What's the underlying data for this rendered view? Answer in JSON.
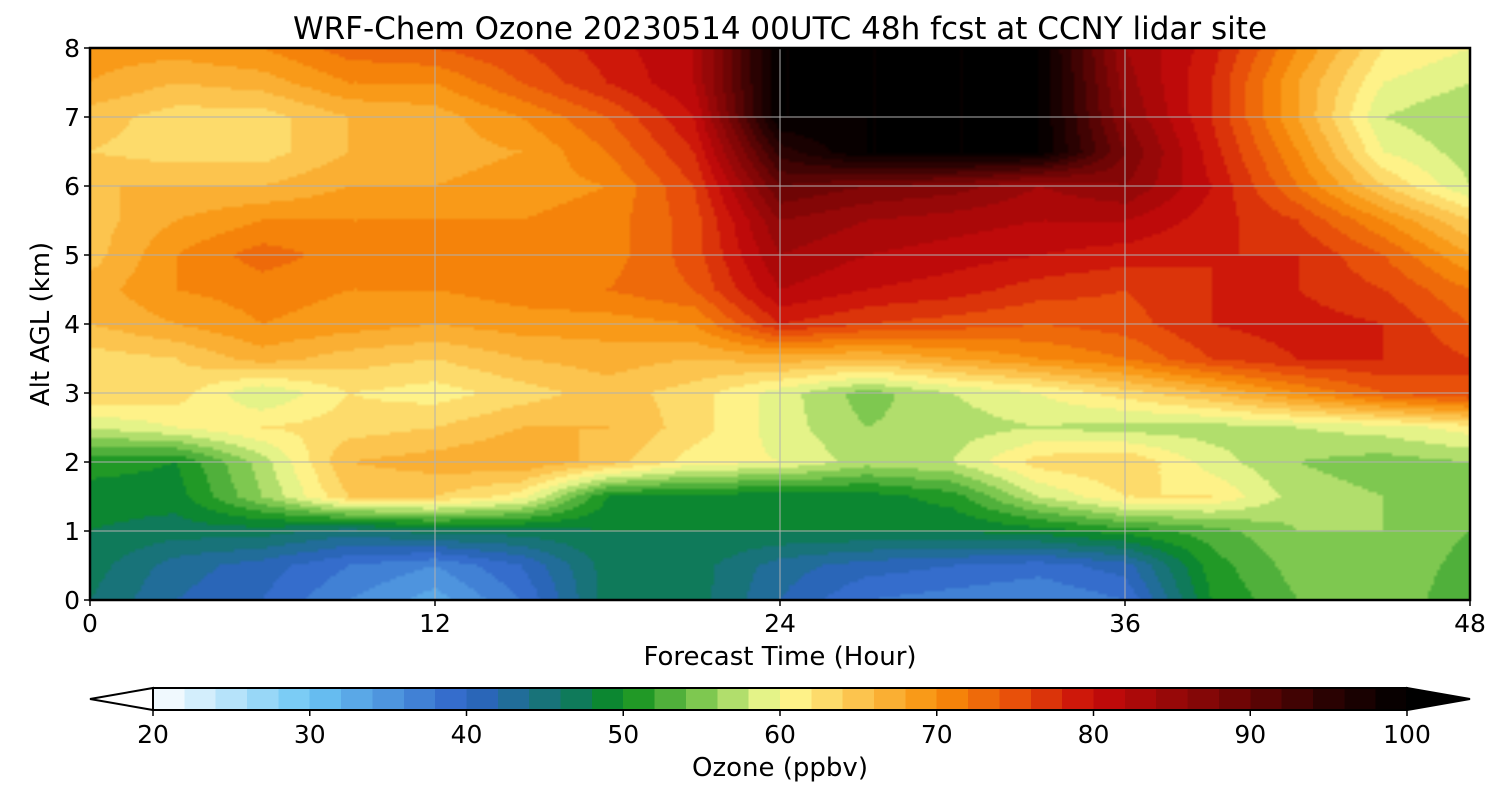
{
  "chart_data": {
    "type": "heatmap",
    "title": "WRF-Chem Ozone  20230514 00UTC 48h fcst at CCNY lidar site",
    "xlabel": "Forecast Time (Hour)",
    "ylabel": "Alt AGL (km)",
    "xlim": [
      0,
      48
    ],
    "ylim": [
      0,
      8
    ],
    "x_ticks": [
      "0",
      "12",
      "24",
      "36",
      "48"
    ],
    "y_ticks": [
      "0",
      "1",
      "2",
      "3",
      "4",
      "5",
      "6",
      "7",
      "8"
    ],
    "grid": true,
    "colorbar": {
      "label": "Ozone  (ppbv)",
      "orientation": "horizontal",
      "range": [
        20,
        100
      ],
      "extend": "both",
      "ticks": [
        "20",
        "30",
        "40",
        "50",
        "60",
        "70",
        "80",
        "90",
        "100"
      ],
      "stops": [
        {
          "value": 20,
          "color": "#ffffff"
        },
        {
          "value": 30,
          "color": "#6cc6f4"
        },
        {
          "value": 40,
          "color": "#2f63c8"
        },
        {
          "value": 47,
          "color": "#0f7a5a"
        },
        {
          "value": 50,
          "color": "#0a8d1c"
        },
        {
          "value": 55,
          "color": "#7ec850"
        },
        {
          "value": 60,
          "color": "#fefe96"
        },
        {
          "value": 65,
          "color": "#fcc44e"
        },
        {
          "value": 70,
          "color": "#f8900a"
        },
        {
          "value": 75,
          "color": "#e8500a"
        },
        {
          "value": 80,
          "color": "#c80a0a"
        },
        {
          "value": 88,
          "color": "#7a0606"
        },
        {
          "value": 95,
          "color": "#2a0202"
        },
        {
          "value": 100,
          "color": "#000000"
        }
      ]
    },
    "x": [
      0,
      3,
      6,
      9,
      12,
      15,
      18,
      21,
      24,
      27,
      30,
      33,
      36,
      39,
      42,
      45,
      48
    ],
    "y": [
      0,
      0.5,
      1,
      1.5,
      2,
      2.5,
      3,
      3.5,
      4,
      4.5,
      5,
      5.5,
      6,
      6.5,
      7,
      7.5,
      8
    ],
    "z": [
      [
        46,
        42,
        40,
        36,
        33,
        38,
        47,
        47,
        42,
        38,
        37,
        36,
        38,
        50,
        54,
        56,
        52
      ],
      [
        47,
        43,
        41,
        38,
        36,
        40,
        47,
        47,
        43,
        41,
        40,
        39,
        41,
        51,
        55,
        56,
        53
      ],
      [
        48,
        47,
        47,
        45,
        47,
        47,
        48,
        48,
        48,
        48,
        48,
        49,
        51,
        53,
        56,
        56,
        54
      ],
      [
        49,
        49,
        56,
        64,
        64,
        61,
        50,
        49,
        49,
        49,
        51,
        58,
        62,
        62,
        57,
        56,
        54
      ],
      [
        51,
        50,
        57,
        66,
        67,
        68,
        65,
        61,
        60,
        57,
        58,
        63,
        64,
        59,
        56,
        55,
        56
      ],
      [
        58,
        60,
        62,
        63,
        64,
        66,
        66,
        63,
        59,
        56,
        57,
        58,
        57,
        57,
        58,
        59,
        61
      ],
      [
        64,
        63,
        58,
        62,
        61,
        63,
        65,
        63,
        59,
        55,
        58,
        60,
        63,
        66,
        70,
        74,
        76
      ],
      [
        63,
        64,
        67,
        65,
        64,
        66,
        67,
        66,
        67,
        66,
        68,
        70,
        72,
        76,
        78,
        78,
        76
      ],
      [
        66,
        68,
        70,
        69,
        68,
        69,
        69,
        70,
        78,
        76,
        75,
        74,
        75,
        78,
        79,
        78,
        74
      ],
      [
        67,
        70,
        71,
        70,
        70,
        71,
        72,
        74,
        82,
        80,
        79,
        77,
        76,
        78,
        78,
        76,
        72
      ],
      [
        65,
        70,
        73,
        71,
        70,
        70,
        71,
        75,
        84,
        82,
        81,
        80,
        79,
        78,
        78,
        74,
        68
      ],
      [
        65,
        68,
        70,
        70,
        70,
        70,
        71,
        75,
        86,
        84,
        83,
        82,
        82,
        79,
        76,
        70,
        64
      ],
      [
        66,
        66,
        66,
        68,
        68,
        69,
        70,
        76,
        90,
        88,
        87,
        84,
        86,
        80,
        72,
        64,
        58
      ],
      [
        64,
        63,
        63,
        66,
        67,
        68,
        72,
        78,
        95,
        100,
        100,
        100,
        88,
        79,
        70,
        60,
        57
      ],
      [
        65,
        63,
        63,
        66,
        67,
        70,
        74,
        80,
        100,
        100,
        100,
        100,
        86,
        78,
        68,
        58,
        56
      ],
      [
        68,
        66,
        67,
        70,
        70,
        74,
        78,
        82,
        100,
        100,
        100,
        100,
        85,
        78,
        68,
        60,
        58
      ],
      [
        69,
        69,
        70,
        73,
        74,
        76,
        79,
        82,
        100,
        100,
        100,
        100,
        84,
        79,
        70,
        62,
        60
      ]
    ]
  }
}
